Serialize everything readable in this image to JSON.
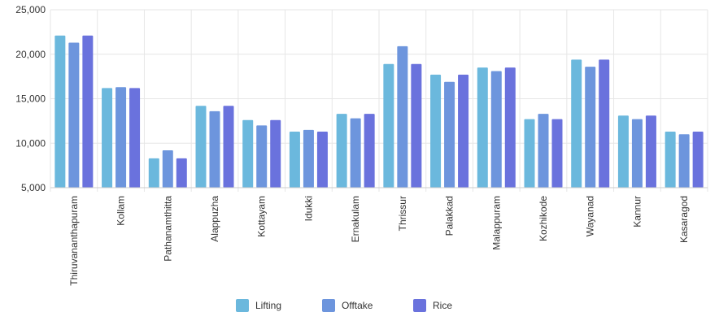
{
  "chart_data": {
    "type": "bar",
    "categories": [
      "Thiruvananthapuram",
      "Kollam",
      "Pathanamthitta",
      "Alappuzha",
      "Kottayam",
      "Idukki",
      "Ernakulam",
      "Thrissur",
      "Palakkad",
      "Malappuram",
      "Kozhikode",
      "Wayanad",
      "Kannur",
      "Kasaragod"
    ],
    "series": [
      {
        "name": "Lifting",
        "color": "#6bb8dd",
        "values": [
          22100,
          16200,
          8300,
          14200,
          12600,
          11300,
          13300,
          18900,
          17700,
          18500,
          12700,
          19400,
          13100,
          11300
        ]
      },
      {
        "name": "Offtake",
        "color": "#6d95dd",
        "values": [
          21300,
          16300,
          9200,
          13600,
          12000,
          11500,
          12800,
          20900,
          16900,
          18100,
          13300,
          18600,
          12700,
          11000
        ]
      },
      {
        "name": "Rice",
        "color": "#6a72dd",
        "values": [
          22100,
          16200,
          8300,
          14200,
          12600,
          11300,
          13300,
          18900,
          17700,
          18500,
          12700,
          19400,
          13100,
          11300
        ]
      }
    ],
    "ylim": [
      5000,
      25000
    ],
    "yticks": [
      5000,
      10000,
      15000,
      20000,
      25000
    ],
    "ytick_labels": [
      "5,000",
      "10,000",
      "15,000",
      "20,000",
      "25,000"
    ],
    "grid": true,
    "legend_position": "bottom-center"
  }
}
